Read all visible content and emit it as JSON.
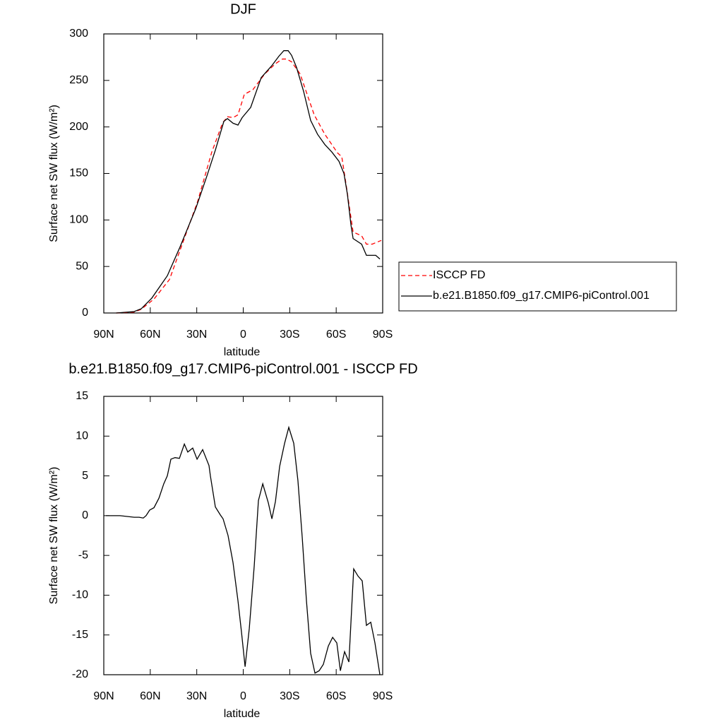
{
  "chart_data": [
    {
      "type": "line",
      "title": "DJF",
      "xlabel": "latitude",
      "ylabel": "Surface net SW flux (W/m²)",
      "xlim": [
        90,
        -90
      ],
      "ylim": [
        0,
        300
      ],
      "xticks": [
        {
          "value": 90,
          "label": "90N"
        },
        {
          "value": 60,
          "label": "60N"
        },
        {
          "value": 30,
          "label": "30N"
        },
        0,
        {
          "value": -30,
          "label": "30S"
        },
        {
          "value": -60,
          "label": "60S"
        },
        {
          "value": -90,
          "label": "90S"
        }
      ],
      "yticks": [
        0,
        50,
        100,
        150,
        200,
        250,
        300
      ],
      "legend": "outside-right",
      "series": [
        {
          "name": "ISCCP FD",
          "color": "#ff0000",
          "linestyle": "dashed",
          "x": [
            82,
            70.4,
            65.8,
            57.6,
            47.6,
            38.5,
            29.4,
            20.3,
            13.4,
            10.2,
            6.6,
            3.4,
            -0.7,
            -6.2,
            -13.9,
            -20.8,
            -25.3,
            -28,
            -31.2,
            -36.7,
            -45.8,
            -52.7,
            -60.9,
            -63.6,
            -66.3,
            -70.9,
            -76.4,
            -79.5,
            -83.2,
            -89.1
          ],
          "values": [
            0,
            1,
            4,
            15,
            36,
            78,
            120,
            173,
            204,
            211,
            210,
            213,
            235,
            240,
            257,
            268,
            273,
            273,
            270,
            257,
            213,
            192,
            172,
            168,
            139,
            87,
            83,
            74,
            74,
            78
          ]
        },
        {
          "name": "b.e21.B1850.f09_g17.CMIP6-piControl.001",
          "color": "#000000",
          "linestyle": "solid",
          "x": [
            82,
            70.4,
            65.8,
            59,
            49,
            40.8,
            30.7,
            23.5,
            18,
            12.5,
            10.2,
            6.6,
            3.4,
            0.7,
            -4.8,
            -11.6,
            -18.5,
            -23,
            -26.2,
            -29,
            -31.2,
            -34.4,
            -39,
            -43.5,
            -48,
            -52.7,
            -57.2,
            -61.8,
            -65,
            -67.2,
            -69.5,
            -70.9,
            -76.4,
            -79.5,
            -85.5,
            -88.2
          ],
          "values": [
            0,
            1.5,
            4.6,
            16,
            40,
            71,
            112,
            147,
            175,
            206,
            209,
            204,
            202,
            210,
            221,
            253,
            266,
            276,
            282,
            282,
            277,
            264,
            238,
            207,
            192,
            181,
            173,
            163,
            150,
            128,
            95,
            80,
            74,
            62,
            62,
            58
          ]
        }
      ]
    },
    {
      "type": "line",
      "title": "b.e21.B1850.f09_g17.CMIP6-piControl.001 - ISCCP FD",
      "xlabel": "latitude",
      "ylabel": "Surface net SW flux (W/m²)",
      "xlim": [
        90,
        -90
      ],
      "ylim": [
        -20,
        15
      ],
      "xticks": [
        {
          "value": 90,
          "label": "90N"
        },
        {
          "value": 60,
          "label": "60N"
        },
        {
          "value": 30,
          "label": "30N"
        },
        0,
        {
          "value": -30,
          "label": "30S"
        },
        {
          "value": -60,
          "label": "60S"
        },
        {
          "value": -90,
          "label": "90S"
        }
      ],
      "yticks": [
        -20,
        -15,
        -10,
        -5,
        0,
        5,
        10,
        15
      ],
      "series": [
        {
          "color": "#000000",
          "linestyle": "solid",
          "x": [
            88.6,
            79.5,
            70.4,
            67.2,
            64.5,
            62.7,
            60.4,
            57.6,
            54.4,
            51.3,
            49,
            46.7,
            44,
            41.2,
            38,
            35.8,
            32.6,
            29.8,
            26.2,
            22.1,
            21.2,
            18,
            14.8,
            13,
            9.8,
            6.6,
            3.4,
            1.1,
            -1.2,
            -3.9,
            -7.1,
            -9.8,
            -12.6,
            -16.2,
            -18.5,
            -20.8,
            -23.5,
            -26.7,
            -29.4,
            -32.6,
            -35.3,
            -38.1,
            -40.8,
            -43.5,
            -46.3,
            -49,
            -51.7,
            -54.9,
            -57.7,
            -60.4,
            -62.7,
            -65.4,
            -68.2,
            -71.3,
            -74.1,
            -76.8,
            -79.5,
            -82.3,
            -85,
            -88.2
          ],
          "values": [
            0,
            0,
            -0.2,
            -0.2,
            -0.3,
            0,
            0.7,
            1,
            2.2,
            4,
            5,
            7.1,
            7.3,
            7.2,
            9,
            8,
            8.5,
            7.1,
            8.3,
            6.3,
            5,
            1.1,
            0.1,
            -0.4,
            -2.5,
            -5.9,
            -10.7,
            -14.7,
            -19,
            -14.2,
            -6.3,
            1.9,
            4,
            1.6,
            -0.4,
            1.8,
            6.2,
            9.1,
            11.1,
            9.1,
            4.4,
            -2.8,
            -10.7,
            -17.3,
            -19.8,
            -19.5,
            -18.7,
            -16.4,
            -15.3,
            -16,
            -19.5,
            -17.1,
            -18.4,
            -6.7,
            -7.6,
            -8.2,
            -13.8,
            -13.4,
            -16,
            -20
          ]
        }
      ]
    }
  ]
}
